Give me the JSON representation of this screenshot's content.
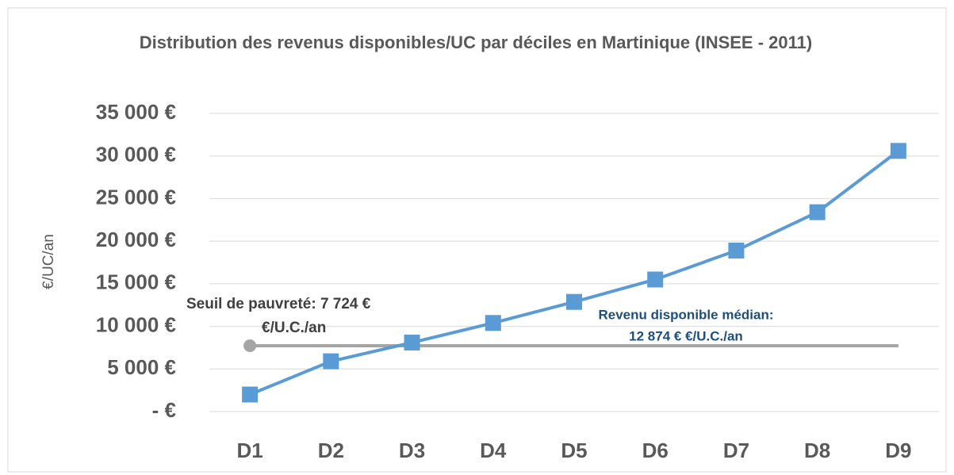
{
  "chart_data": {
    "type": "line",
    "title": "Distribution des revenus disponibles/UC par déciles en Martinique (INSEE - 2011)",
    "y_label": "€/UC/an",
    "categories": [
      "D1",
      "D2",
      "D3",
      "D4",
      "D5",
      "D6",
      "D7",
      "D8",
      "D9"
    ],
    "series": [
      {
        "color": "#5b9bd5",
        "marker": "square",
        "values": [
          2000,
          5900,
          8100,
          10400,
          12874,
          15500,
          18900,
          23400,
          30600
        ]
      },
      {
        "color": "#a5a5a5",
        "marker": "first-circle",
        "values": [
          7724,
          7724,
          7724,
          7724,
          7724,
          7724,
          7724,
          7724,
          7724
        ]
      }
    ],
    "ylim": [
      0,
      35000
    ],
    "yticks": [
      {
        "value": 0,
        "label": "-   €"
      },
      {
        "value": 5000,
        "label": "5 000 €"
      },
      {
        "value": 10000,
        "label": "10 000 €"
      },
      {
        "value": 15000,
        "label": "15 000 €"
      },
      {
        "value": 20000,
        "label": "20 000 €"
      },
      {
        "value": 25000,
        "label": "25 000 €"
      },
      {
        "value": 30000,
        "label": "30 000 €"
      },
      {
        "value": 35000,
        "label": "35 000 €"
      }
    ],
    "grid": true,
    "annotations": [
      {
        "lines": [
          "Seuil de pauvreté:  7 724 €",
          "€/U.C./an"
        ],
        "color": "#404040"
      },
      {
        "lines": [
          "Revenu disponible médian:",
          "12 874 € €/U.C./an"
        ],
        "color": "#1f4e79"
      }
    ]
  }
}
